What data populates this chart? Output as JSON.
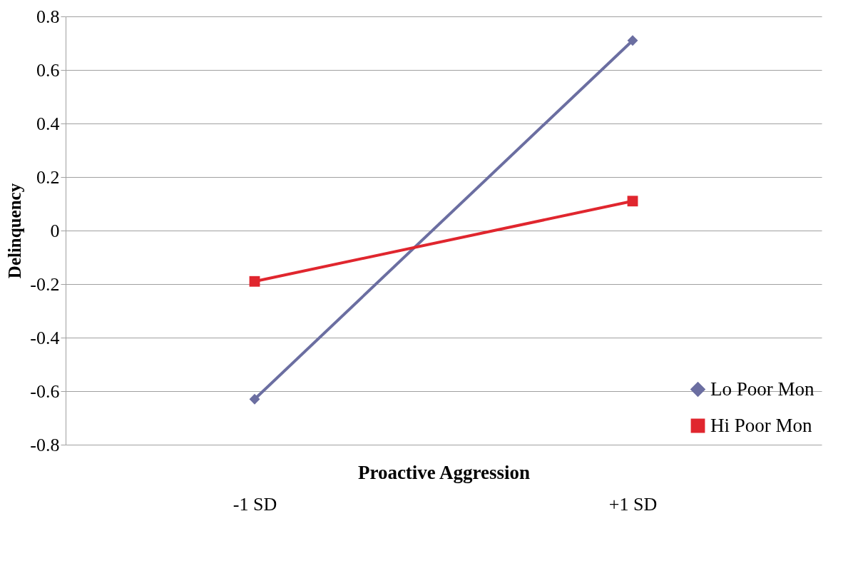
{
  "chart_data": {
    "type": "line",
    "xlabel": "Proactive Aggression",
    "ylabel": "Delinquency",
    "categories": [
      "-1 SD",
      "+1 SD"
    ],
    "series": [
      {
        "name": "Lo Poor Mon",
        "color": "#6b6ea1",
        "marker": "diamond",
        "values": [
          -0.63,
          0.71
        ]
      },
      {
        "name": "Hi Poor Mon",
        "color": "#e0262e",
        "marker": "square",
        "values": [
          -0.19,
          0.11
        ]
      }
    ],
    "ylim": [
      -0.8,
      0.8
    ],
    "yticks": [
      -0.8,
      -0.6,
      -0.4,
      -0.2,
      0,
      0.2,
      0.4,
      0.6,
      0.8
    ],
    "grid": "y",
    "legend": "bottom right"
  }
}
